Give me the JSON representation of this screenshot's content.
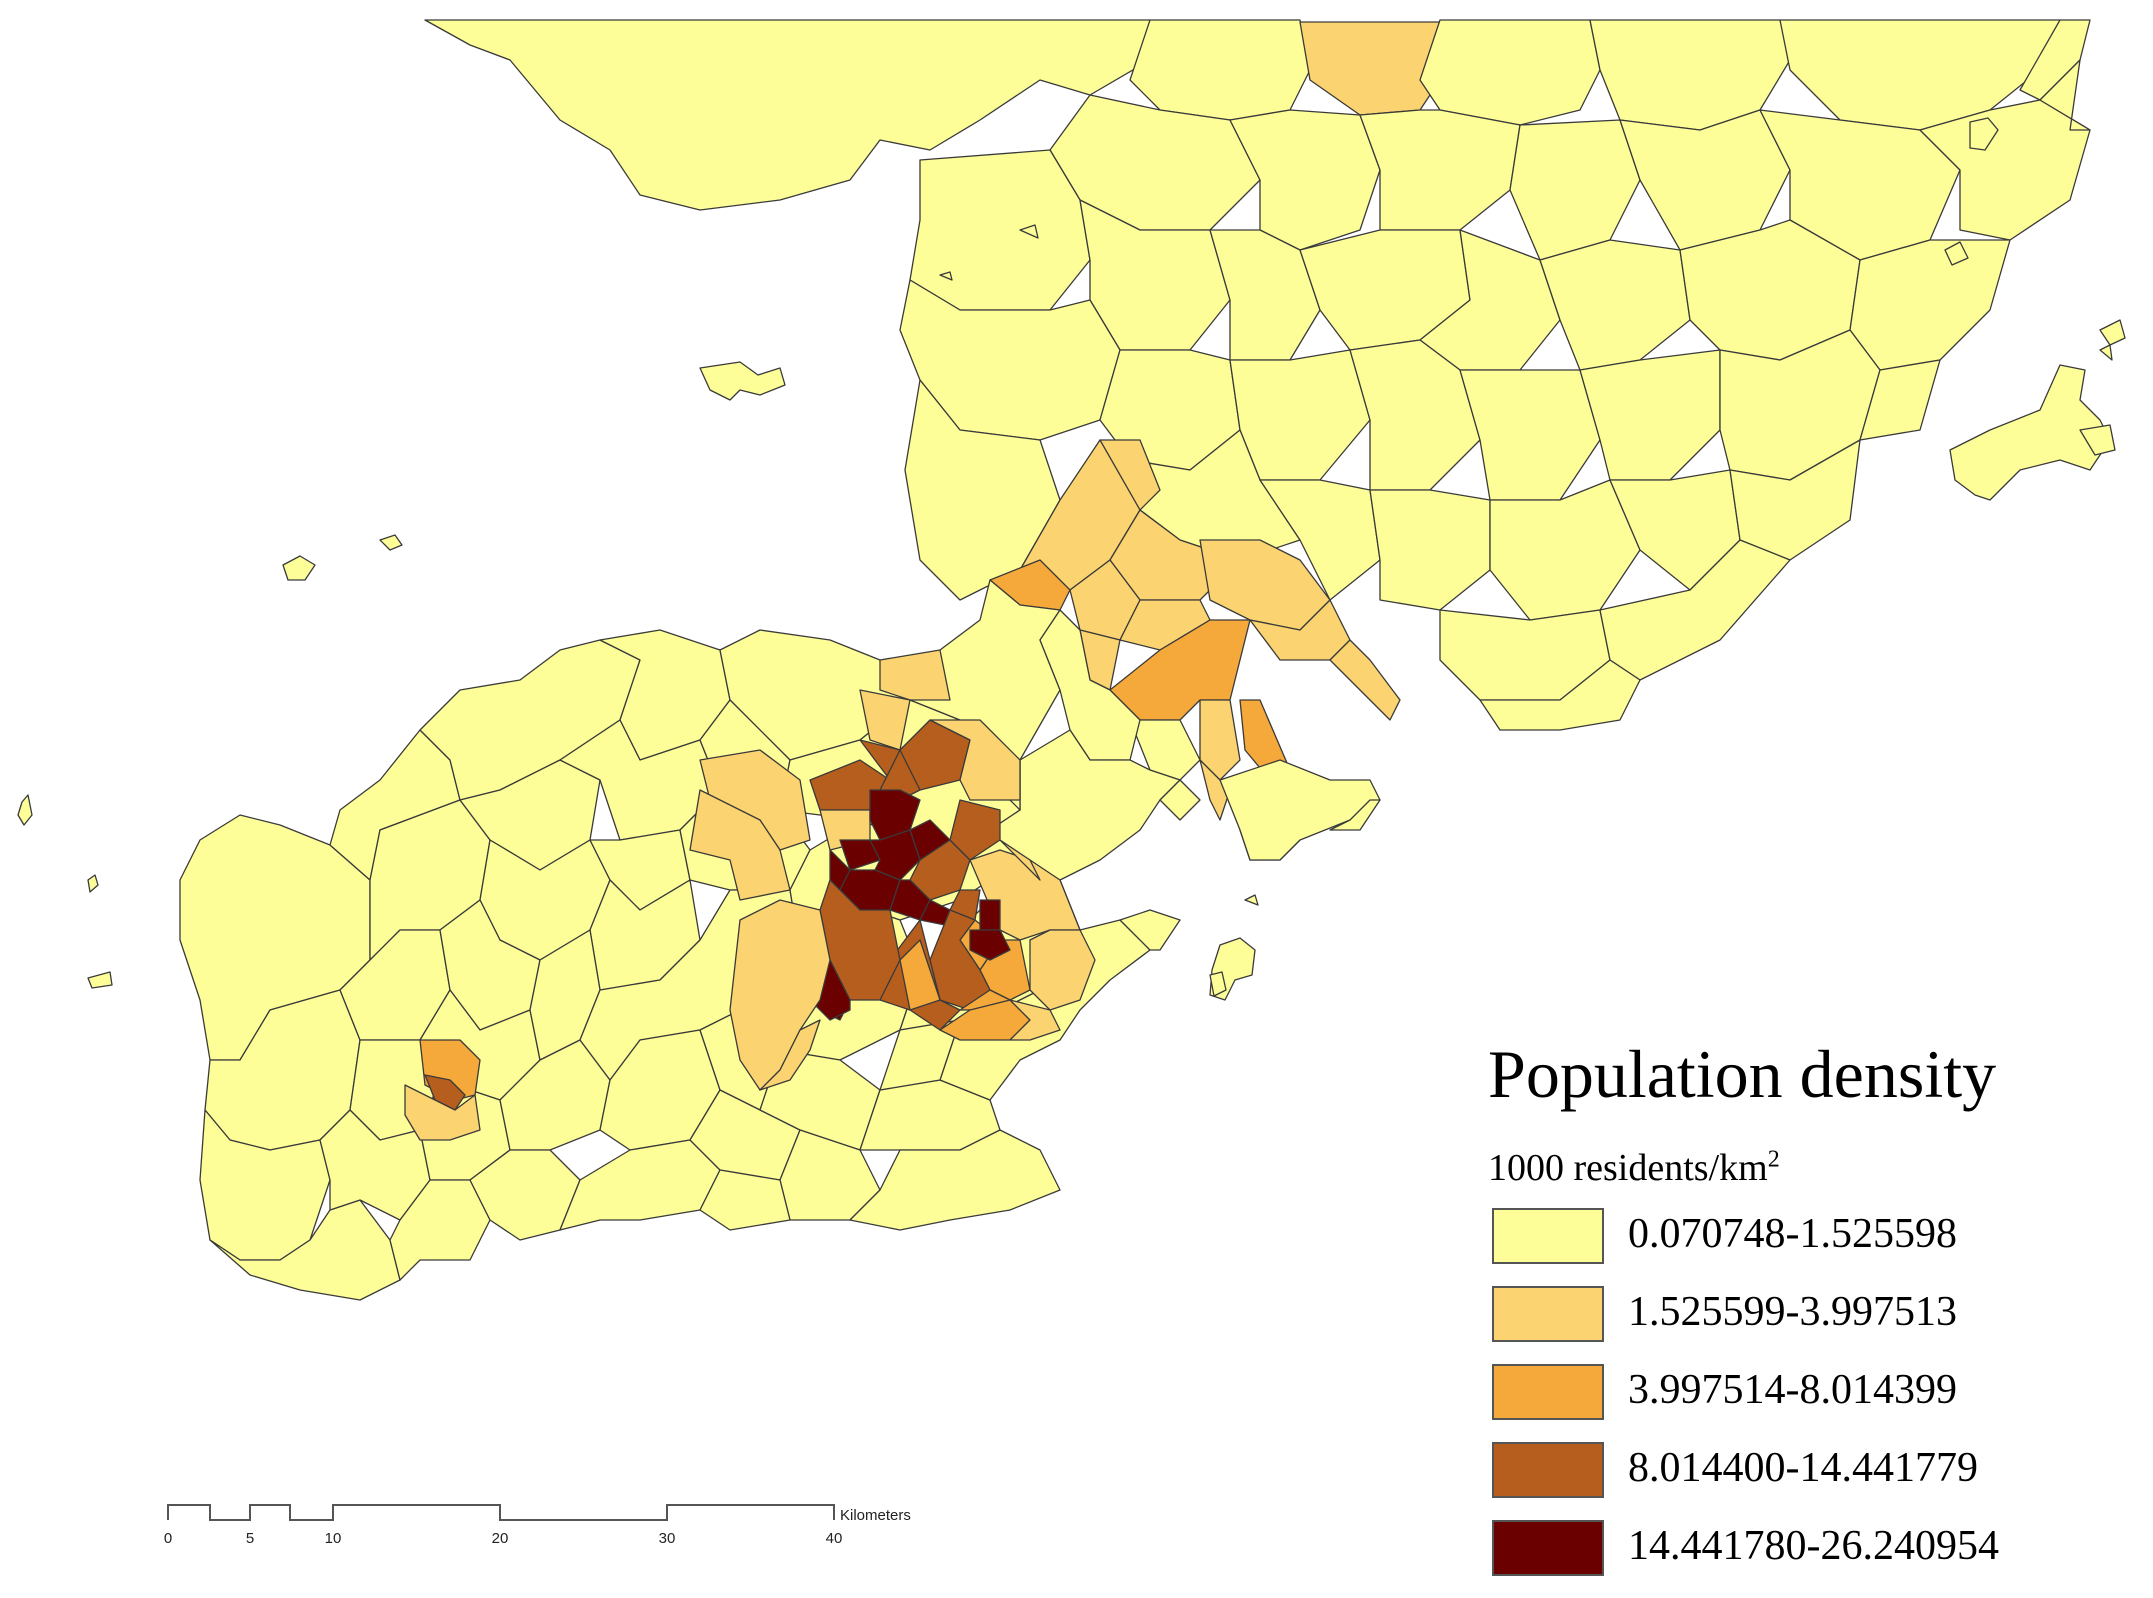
{
  "map": {
    "legend": {
      "title": "Population density",
      "unit_prefix": "1000 residents/km",
      "unit_superscript": "2",
      "classes": [
        {
          "label": "0.070748-1.525598",
          "color": "#fefe99"
        },
        {
          "label": "1.525599-3.997513",
          "color": "#fbd471"
        },
        {
          "label": "3.997514-8.014399",
          "color": "#f5a93b"
        },
        {
          "label": "8.014400-14.441779",
          "color": "#b55e1d"
        },
        {
          "label": "14.441780-26.240954",
          "color": "#6b0000"
        }
      ]
    },
    "scale_bar": {
      "unit": "Kilometers",
      "ticks": [
        "0",
        "5",
        "10",
        "20",
        "30",
        "40"
      ]
    }
  }
}
